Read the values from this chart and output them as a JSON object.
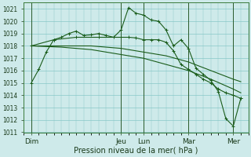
{
  "title": "",
  "xlabel": "Pression niveau de la mer( hPa )",
  "ylim": [
    1011,
    1021.5
  ],
  "xlim": [
    0,
    30
  ],
  "background_color": "#ceeaea",
  "grid_color": "#88c8c8",
  "line_color": "#1a5c1a",
  "day_labels": [
    "Dim",
    "Jeu",
    "Lun",
    "Mar",
    "Mer"
  ],
  "day_positions": [
    1,
    13,
    16,
    22,
    28
  ],
  "vline_positions": [
    1,
    13,
    16,
    22,
    28
  ],
  "line1_x": [
    1,
    2,
    3,
    4,
    5,
    6,
    7,
    8,
    9,
    10,
    11,
    12,
    13,
    14,
    15,
    16,
    17,
    18,
    19,
    20,
    21,
    22,
    23,
    24,
    25,
    26,
    27,
    28,
    29
  ],
  "line1_y": [
    1015.0,
    1016.1,
    1017.5,
    1018.5,
    1018.7,
    1019.0,
    1019.2,
    1018.85,
    1018.9,
    1019.0,
    1018.85,
    1018.7,
    1019.3,
    1021.1,
    1020.65,
    1020.5,
    1020.1,
    1020.0,
    1019.3,
    1018.0,
    1018.5,
    1017.8,
    1016.2,
    1015.7,
    1015.2,
    1014.3,
    1012.1,
    1011.5,
    1013.75
  ],
  "line2_x": [
    1,
    4,
    7,
    10,
    13,
    14,
    15,
    16,
    17,
    18,
    19,
    20,
    21,
    22,
    23,
    24,
    25,
    26,
    27,
    28,
    29
  ],
  "line2_y": [
    1018.0,
    1018.5,
    1018.7,
    1018.7,
    1018.7,
    1018.7,
    1018.65,
    1018.5,
    1018.5,
    1018.5,
    1018.3,
    1017.6,
    1016.5,
    1016.1,
    1015.7,
    1015.3,
    1015.0,
    1014.5,
    1014.2,
    1014.0,
    1013.75
  ],
  "line3_x": [
    1,
    5,
    9,
    13,
    16,
    19,
    22,
    25,
    28,
    29
  ],
  "line3_y": [
    1018.0,
    1018.0,
    1018.0,
    1017.8,
    1017.5,
    1017.2,
    1016.7,
    1016.0,
    1015.3,
    1015.1
  ],
  "line4_x": [
    1,
    5,
    9,
    13,
    16,
    19,
    22,
    25,
    28,
    29
  ],
  "line4_y": [
    1018.0,
    1017.9,
    1017.7,
    1017.3,
    1017.0,
    1016.5,
    1016.0,
    1015.3,
    1014.5,
    1014.2
  ],
  "yticks": [
    1011,
    1012,
    1013,
    1014,
    1015,
    1016,
    1017,
    1018,
    1019,
    1020,
    1021
  ],
  "ytick_fontsize": 5.5,
  "xtick_fontsize": 6.5,
  "xlabel_fontsize": 7.0
}
